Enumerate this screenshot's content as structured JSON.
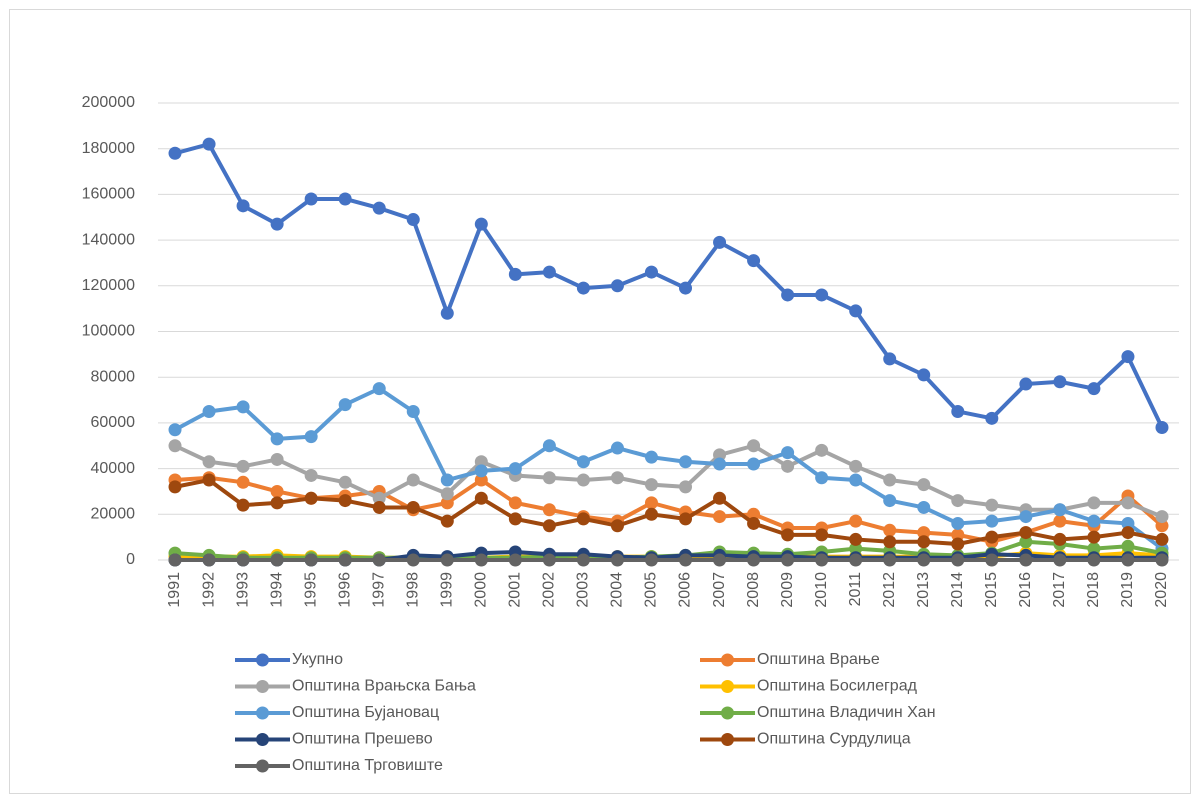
{
  "chart_data": {
    "type": "line",
    "categories": [
      "1991",
      "1992",
      "1993",
      "1994",
      "1995",
      "1996",
      "1997",
      "1998",
      "1999",
      "2000",
      "2001",
      "2002",
      "2003",
      "2004",
      "2005",
      "2006",
      "2007",
      "2008",
      "2009",
      "2010",
      "2011",
      "2012",
      "2013",
      "2014",
      "2015",
      "2016",
      "2017",
      "2018",
      "2019",
      "2020"
    ],
    "ylim": [
      0,
      200000
    ],
    "yticks": [
      0,
      20000,
      40000,
      60000,
      80000,
      100000,
      120000,
      140000,
      160000,
      180000,
      200000
    ],
    "grid": true,
    "legend": "bottom",
    "series": [
      {
        "name": "Укупно",
        "color": "#4472c4",
        "values": [
          178000,
          182000,
          155000,
          147000,
          158000,
          158000,
          154000,
          149000,
          108000,
          147000,
          125000,
          126000,
          119000,
          120000,
          126000,
          119000,
          139000,
          131000,
          116000,
          116000,
          109000,
          88000,
          81000,
          65000,
          62000,
          77000,
          78000,
          75000,
          89000,
          58000
        ]
      },
      {
        "name": "Општина Врање",
        "color": "#ed7d31",
        "values": [
          35000,
          36000,
          34000,
          30000,
          27000,
          28000,
          30000,
          22000,
          25000,
          35000,
          25000,
          22000,
          19000,
          17000,
          25000,
          21000,
          19000,
          20000,
          14000,
          14000,
          17000,
          13000,
          12000,
          11000,
          8000,
          12000,
          17000,
          15000,
          28000,
          15000
        ]
      },
      {
        "name": "Општина Врањска Бања",
        "color": "#a5a5a5",
        "values": [
          50000,
          43000,
          41000,
          44000,
          37000,
          34000,
          27000,
          35000,
          29000,
          43000,
          37000,
          36000,
          35000,
          36000,
          33000,
          32000,
          46000,
          50000,
          41000,
          48000,
          41000,
          35000,
          33000,
          26000,
          24000,
          22000,
          22000,
          25000,
          25000,
          19000
        ]
      },
      {
        "name": "Општина Босилеград",
        "color": "#ffc000",
        "values": [
          1500,
          1500,
          1500,
          2000,
          1500,
          1500,
          1000,
          1000,
          1000,
          1000,
          1500,
          1500,
          1500,
          1500,
          1500,
          1500,
          1500,
          1500,
          1500,
          1500,
          1500,
          1500,
          1500,
          1500,
          1500,
          3000,
          2000,
          2000,
          3000,
          2000
        ]
      },
      {
        "name": "Општина Бујановац",
        "color": "#5b9bd5",
        "values": [
          57000,
          65000,
          67000,
          53000,
          54000,
          68000,
          75000,
          65000,
          35000,
          39000,
          40000,
          50000,
          43000,
          49000,
          45000,
          43000,
          42000,
          42000,
          47000,
          36000,
          35000,
          26000,
          23000,
          16000,
          17000,
          19000,
          22000,
          17000,
          16000,
          5000
        ]
      },
      {
        "name": "Општина Владичин Хан",
        "color": "#70ad47",
        "values": [
          3000,
          2000,
          1000,
          1000,
          1000,
          1000,
          1000,
          1000,
          1000,
          1000,
          1000,
          1500,
          2000,
          1000,
          1500,
          2000,
          3500,
          3000,
          2500,
          3500,
          5000,
          4000,
          2500,
          2000,
          3000,
          8000,
          7000,
          5000,
          6000,
          3000
        ]
      },
      {
        "name": "Општина Прешево",
        "color": "#264478",
        "values": [
          0,
          0,
          0,
          0,
          0,
          0,
          0,
          2000,
          1500,
          3000,
          3500,
          2500,
          2500,
          1500,
          1000,
          2000,
          2000,
          1500,
          1500,
          1000,
          1000,
          1000,
          1000,
          1000,
          2500,
          2000,
          1000,
          1000,
          1000,
          1000
        ]
      },
      {
        "name": "Општина Сурдулица",
        "color": "#9e480e",
        "values": [
          32000,
          35000,
          24000,
          25000,
          27000,
          26000,
          23000,
          23000,
          17000,
          27000,
          18000,
          15000,
          18000,
          15000,
          20000,
          18000,
          27000,
          16000,
          11000,
          11000,
          9000,
          8000,
          8000,
          7000,
          10000,
          12000,
          9000,
          10000,
          12000,
          9000
        ]
      },
      {
        "name": "Општина Трговиште",
        "color": "#636363",
        "values": [
          0,
          0,
          0,
          0,
          0,
          0,
          0,
          0,
          0,
          0,
          0,
          0,
          0,
          0,
          0,
          0,
          0,
          0,
          0,
          0,
          0,
          0,
          0,
          0,
          0,
          0,
          0,
          0,
          0,
          0
        ]
      }
    ]
  }
}
